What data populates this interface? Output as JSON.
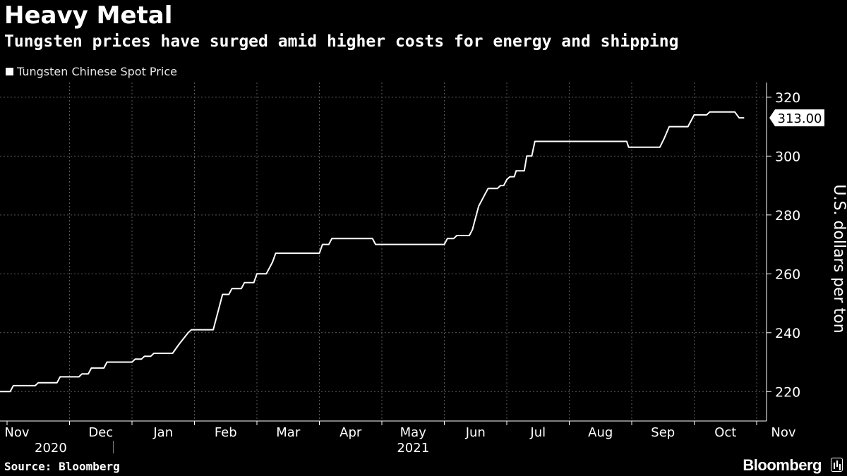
{
  "title": "Heavy Metal",
  "subtitle": "Tungsten prices have surged amid higher costs for energy and shipping",
  "source": "Source: Bloomberg",
  "brand": "Bloomberg",
  "colors": {
    "background": "#000000",
    "line": "#ffffff",
    "grid": "#5a5a5a"
  },
  "chart_data": {
    "type": "line",
    "title": "Heavy Metal",
    "legend": [
      "Tungsten Chinese Spot Price"
    ],
    "ylabel": "U.S. dollars per ton",
    "xlabel": "",
    "ylim": [
      210,
      325
    ],
    "yticks": [
      220,
      240,
      260,
      280,
      300,
      320
    ],
    "last_value_label": "313.00",
    "xlim": [
      0,
      12.3
    ],
    "month_ticks": [
      {
        "label": "Nov",
        "x": 0.0
      },
      {
        "label": "Dec",
        "x": 1.0
      },
      {
        "label": "Jan",
        "x": 2.0
      },
      {
        "label": "Feb",
        "x": 3.0
      },
      {
        "label": "Mar",
        "x": 4.0
      },
      {
        "label": "Apr",
        "x": 5.0
      },
      {
        "label": "May",
        "x": 6.0
      },
      {
        "label": "Jun",
        "x": 7.0
      },
      {
        "label": "Jul",
        "x": 8.0
      },
      {
        "label": "Aug",
        "x": 9.0
      },
      {
        "label": "Sep",
        "x": 10.0
      },
      {
        "label": "Oct",
        "x": 11.0
      },
      {
        "label": "Nov",
        "x": 12.0
      }
    ],
    "year_labels": [
      {
        "label": "2020",
        "x": 0.7
      },
      {
        "label": "2021",
        "x": 6.5
      }
    ],
    "year_divider_x": 1.7,
    "series": [
      {
        "name": "Tungsten Chinese Spot Price",
        "points": [
          [
            -0.35,
            220
          ],
          [
            0.05,
            220
          ],
          [
            0.1,
            222
          ],
          [
            0.45,
            222
          ],
          [
            0.5,
            223
          ],
          [
            0.8,
            223
          ],
          [
            0.85,
            225
          ],
          [
            1.15,
            225
          ],
          [
            1.2,
            226
          ],
          [
            1.3,
            226
          ],
          [
            1.35,
            228
          ],
          [
            1.55,
            228
          ],
          [
            1.6,
            230
          ],
          [
            2.0,
            230
          ],
          [
            2.05,
            231
          ],
          [
            2.15,
            231
          ],
          [
            2.2,
            232
          ],
          [
            2.3,
            232
          ],
          [
            2.35,
            233
          ],
          [
            2.65,
            233
          ],
          [
            2.75,
            236
          ],
          [
            2.9,
            240
          ],
          [
            2.95,
            241
          ],
          [
            3.3,
            241
          ],
          [
            3.4,
            249
          ],
          [
            3.45,
            253
          ],
          [
            3.55,
            253
          ],
          [
            3.6,
            255
          ],
          [
            3.75,
            255
          ],
          [
            3.8,
            257
          ],
          [
            3.95,
            257
          ],
          [
            4.0,
            260
          ],
          [
            4.15,
            260
          ],
          [
            4.25,
            264
          ],
          [
            4.3,
            267
          ],
          [
            5.0,
            267
          ],
          [
            5.05,
            270
          ],
          [
            5.15,
            270
          ],
          [
            5.2,
            272
          ],
          [
            5.85,
            272
          ],
          [
            5.9,
            270
          ],
          [
            7.0,
            270
          ],
          [
            7.05,
            272
          ],
          [
            7.15,
            272
          ],
          [
            7.2,
            273
          ],
          [
            7.4,
            273
          ],
          [
            7.45,
            275
          ],
          [
            7.55,
            283
          ],
          [
            7.65,
            287
          ],
          [
            7.7,
            289
          ],
          [
            7.85,
            289
          ],
          [
            7.9,
            290
          ],
          [
            7.95,
            290
          ],
          [
            8.0,
            292
          ],
          [
            8.05,
            293
          ],
          [
            8.12,
            293
          ],
          [
            8.15,
            295
          ],
          [
            8.28,
            295
          ],
          [
            8.32,
            300
          ],
          [
            8.4,
            300
          ],
          [
            8.45,
            305
          ],
          [
            9.92,
            305
          ],
          [
            9.95,
            303
          ],
          [
            10.45,
            303
          ],
          [
            10.52,
            306
          ],
          [
            10.6,
            310
          ],
          [
            10.9,
            310
          ],
          [
            11.0,
            314
          ],
          [
            11.2,
            314
          ],
          [
            11.25,
            315
          ],
          [
            11.65,
            315
          ],
          [
            11.72,
            313
          ],
          [
            11.8,
            313
          ]
        ]
      }
    ]
  }
}
